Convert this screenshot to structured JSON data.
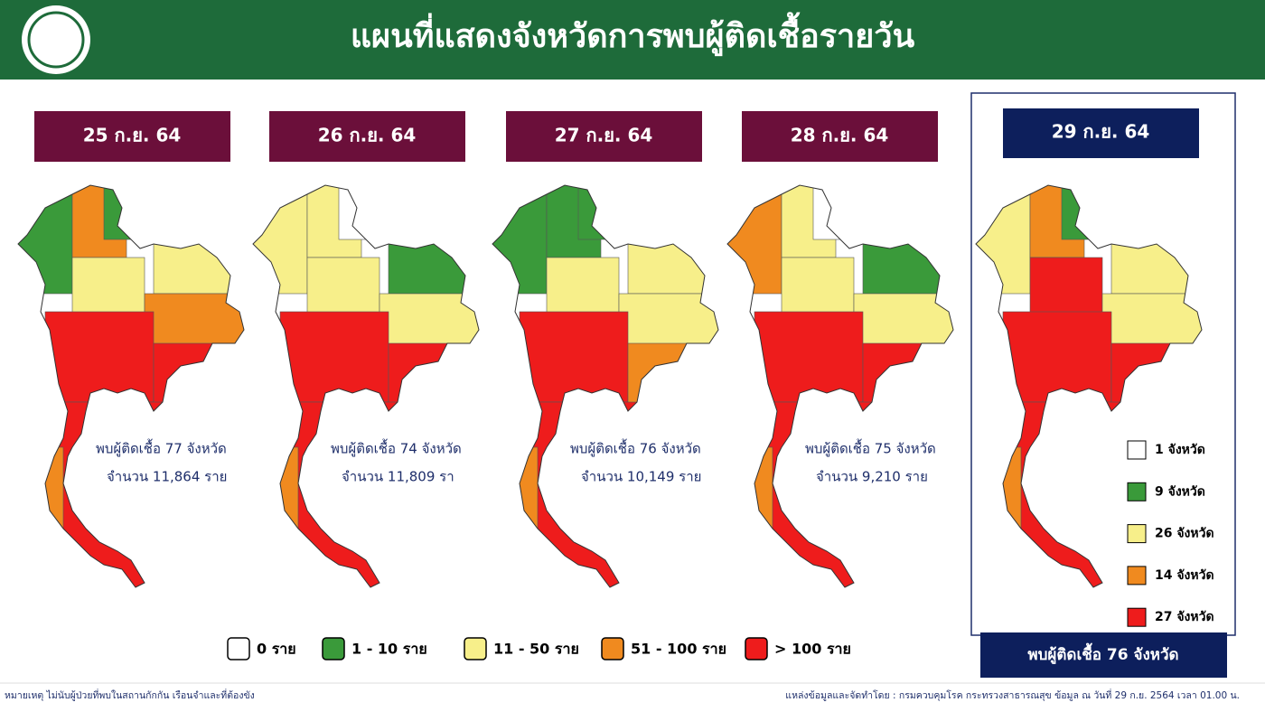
{
  "header": {
    "title": "แผนที่แสดงจังหวัดการพบผู้ติดเชื้อรายวัน"
  },
  "days": [
    {
      "date": "25 ก.ย. 64",
      "summary": "พบผู้ติดเชื้อ 77 จังหวัด",
      "count": "จำนวน 11,864 ราย"
    },
    {
      "date": "26 ก.ย. 64",
      "summary": "พบผู้ติดเชื้อ 74 จังหวัด",
      "count": "จำนวน 11,809 รา"
    },
    {
      "date": "27 ก.ย. 64",
      "summary": "พบผู้ติดเชื้อ 76 จังหวัด",
      "count": "จำนวน 10,149 ราย"
    },
    {
      "date": "28 ก.ย. 64",
      "summary": "พบผู้ติดเชื้อ 75 จังหวัด",
      "count": "จำนวน 9,210 ราย"
    }
  ],
  "latest": {
    "date": "29 ก.ย. 64",
    "legend": [
      "1 จังหวัด",
      "9 จังหวัด",
      "26 จังหวัด",
      "14 จังหวัด",
      "27 จังหวัด"
    ],
    "total": "พบผู้ติดเชื้อ 76 จังหวัด"
  },
  "legend": [
    {
      "label": "0 ราย",
      "color": "#ffffff"
    },
    {
      "label": "1 - 10 ราย",
      "color": "#3a9a3a"
    },
    {
      "label": "11 - 50 ราย",
      "color": "#f7ef8a"
    },
    {
      "label": "51 - 100 ราย",
      "color": "#f08a1f"
    },
    {
      "label": "> 100 ราย",
      "color": "#ee1c1c"
    }
  ],
  "footer": {
    "note": "หมายเหตุ ไม่นับผู้ป่วยที่พบในสถานกักกัน เรือนจำและที่ต้องขัง",
    "source": "แหล่งข้อมูลและจัดทำโดย : กรมควบคุมโรค กระทรวงสาธารณสุข ข้อมูล ณ วันที่ 29 ก.ย. 2564 เวลา 01.00 น."
  }
}
